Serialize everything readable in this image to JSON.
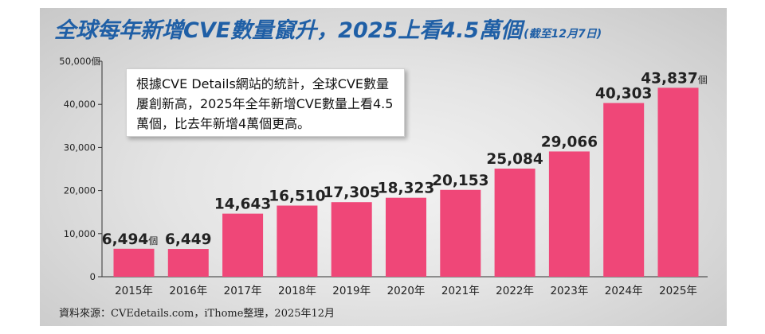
{
  "title": "全球每年新增CVE數量竄升，2025上看4.5萬個",
  "title_note": "(截至12月7日)",
  "callout": "根據CVE Details網站的統計，全球CVE數量屢創新高，2025年全年新增CVE數量上看4.5萬個，比去年新增4萬個更高。",
  "source": "資料來源：CVEdetails.com，iThome整理，2025年12月",
  "colors": {
    "bar": "#ef4778",
    "title": "#1f5fa6",
    "text": "#222222"
  },
  "chart_data": {
    "type": "bar",
    "title": "全球每年新增CVE數量竄升，2025上看4.5萬個",
    "xlabel": "",
    "ylabel": "",
    "unit": "個",
    "categories": [
      "2015年",
      "2016年",
      "2017年",
      "2018年",
      "2019年",
      "2020年",
      "2021年",
      "2022年",
      "2023年",
      "2024年",
      "2025年"
    ],
    "values": [
      6494,
      6449,
      14643,
      16510,
      17305,
      18323,
      20153,
      25084,
      29066,
      40303,
      43837
    ],
    "value_labels": [
      "6,494",
      "6,449",
      "14,643",
      "16,510",
      "17,305",
      "18,323",
      "20,153",
      "25,084",
      "29,066",
      "40,303",
      "43,837"
    ],
    "unit_label_bars": [
      0,
      10
    ],
    "yticks": [
      0,
      10000,
      20000,
      30000,
      40000,
      50000
    ],
    "ytick_labels": [
      "0",
      "10,000",
      "20,000",
      "30,000",
      "40,000",
      "50,000個"
    ],
    "ylim": [
      0,
      50000
    ],
    "grid": false,
    "legend": "none"
  }
}
